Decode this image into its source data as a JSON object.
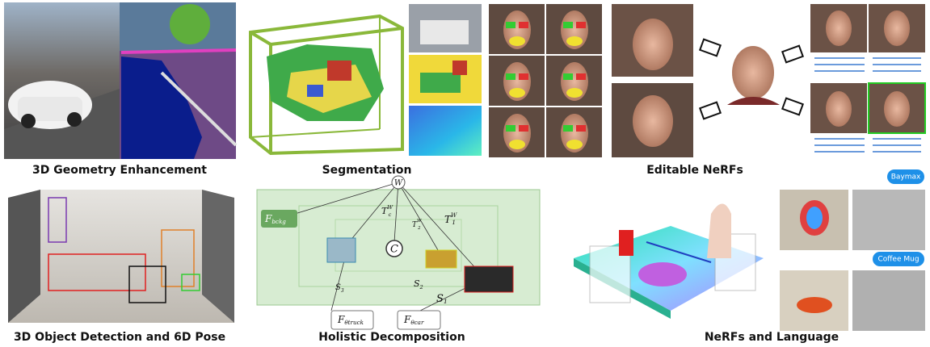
{
  "panels": [
    {
      "caption": "3D Geometry Enhancement"
    },
    {
      "caption": "Segmentation"
    },
    {
      "caption": "Editable NeRFs"
    },
    {
      "caption": "3D Object Detection and 6D Pose"
    },
    {
      "caption": "Holistic Decomposition",
      "world": "W",
      "camera": "C",
      "fields": [
        {
          "main": "F",
          "sub": "bckg"
        },
        {
          "main": "F",
          "sub": "θtruck"
        },
        {
          "main": "F",
          "sub": "θcar"
        }
      ],
      "transforms": [
        {
          "main": "T",
          "sub": "c",
          "sup": "W"
        },
        {
          "main": "T",
          "sub": "2",
          "sup": "W"
        },
        {
          "main": "T",
          "sub": "1",
          "sup": "W"
        }
      ],
      "scales": [
        {
          "main": "S",
          "sub": "3"
        },
        {
          "main": "S",
          "sub": "2"
        },
        {
          "main": "S",
          "sub": "1"
        }
      ]
    },
    {
      "caption": "NeRFs and Language",
      "bubbles": [
        "Baymax",
        "Coffee Mug"
      ]
    }
  ]
}
